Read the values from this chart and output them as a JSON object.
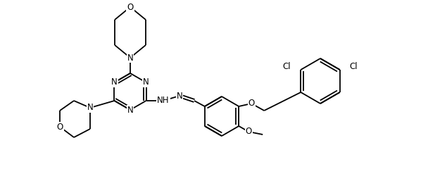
{
  "bg_color": "#ffffff",
  "line_color": "#000000",
  "lw": 1.3,
  "fs": 8.5,
  "fig_width": 6.08,
  "fig_height": 2.74,
  "dpi": 100,
  "xlim": [
    0,
    608
  ],
  "ylim": [
    0,
    274
  ]
}
